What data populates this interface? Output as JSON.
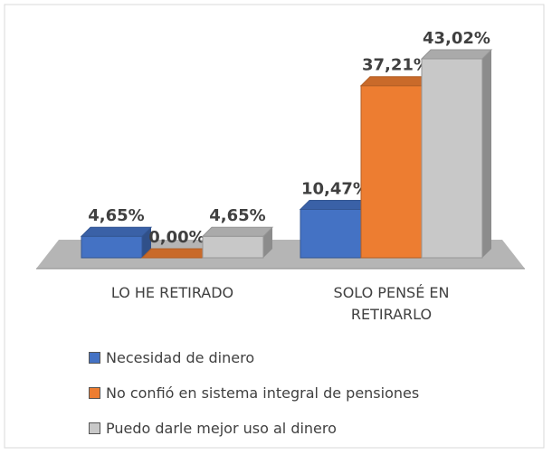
{
  "chart_data": {
    "type": "bar3d",
    "categories": [
      "LO HE RETIRADO",
      "SOLO PENSÉ EN RETIRARLO"
    ],
    "series": [
      {
        "name": "Necesidad de dinero",
        "color": "#4472c4",
        "values": [
          4.65,
          10.47
        ],
        "value_labels": [
          "4,65%",
          "10,47%"
        ]
      },
      {
        "name": "No confió en sistema integral de pensiones",
        "color": "#ed7d31",
        "values": [
          0,
          37.21
        ],
        "value_labels": [
          "0,00%",
          "37,21%"
        ]
      },
      {
        "name": "Puedo darle mejor uso al dinero",
        "color": "#c8c8c8",
        "values": [
          4.65,
          43.02
        ],
        "value_labels": [
          "4,65%",
          "43,02%"
        ]
      }
    ]
  }
}
